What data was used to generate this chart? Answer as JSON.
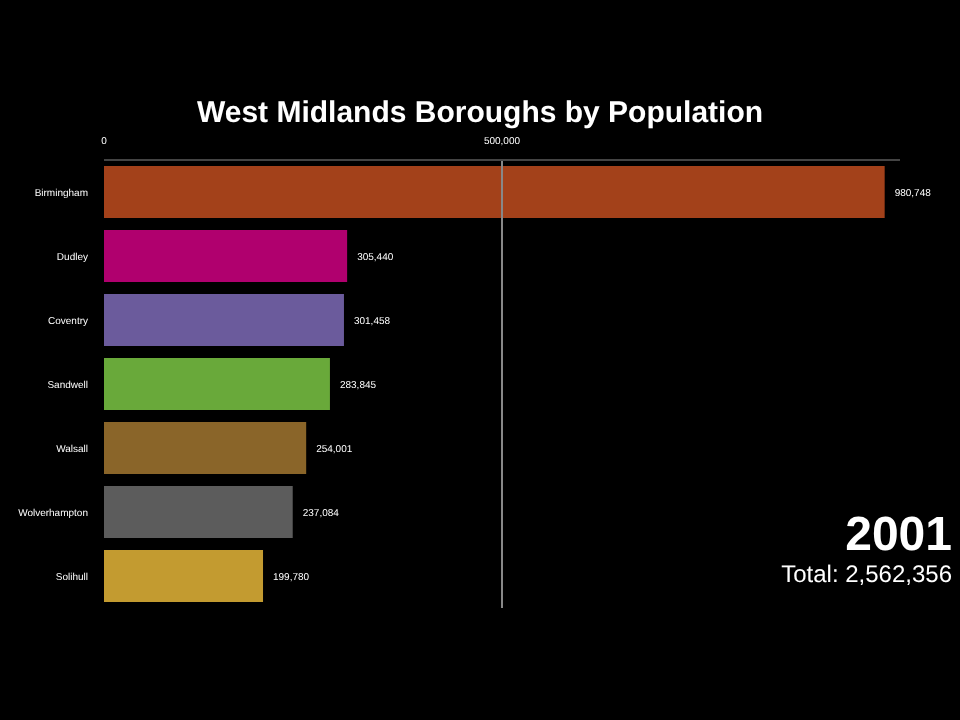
{
  "chart_data": {
    "type": "bar",
    "orientation": "horizontal",
    "title": "West Midlands Boroughs by Population",
    "categories": [
      "Birmingham",
      "Dudley",
      "Coventry",
      "Sandwell",
      "Walsall",
      "Wolverhampton",
      "Solihull"
    ],
    "values": [
      980748,
      305440,
      301458,
      283845,
      254001,
      237084,
      199780
    ],
    "colors": [
      "#a3411a",
      "#b0006e",
      "#6b5b9c",
      "#69a93a",
      "#8a6529",
      "#5c5c5c",
      "#c39b30"
    ],
    "value_labels": [
      "980,748",
      "305,440",
      "301,458",
      "283,845",
      "254,001",
      "237,084",
      "199,780"
    ],
    "xlim": [
      0,
      1000000
    ],
    "xticks": [
      0,
      {
        "value": 500000,
        "label": "500,000"
      }
    ],
    "ref_lines": [
      {
        "axis": "x",
        "value": 500000,
        "color": "#888888"
      }
    ],
    "annotations": [
      "2001",
      "Total: 2,562,356"
    ]
  }
}
